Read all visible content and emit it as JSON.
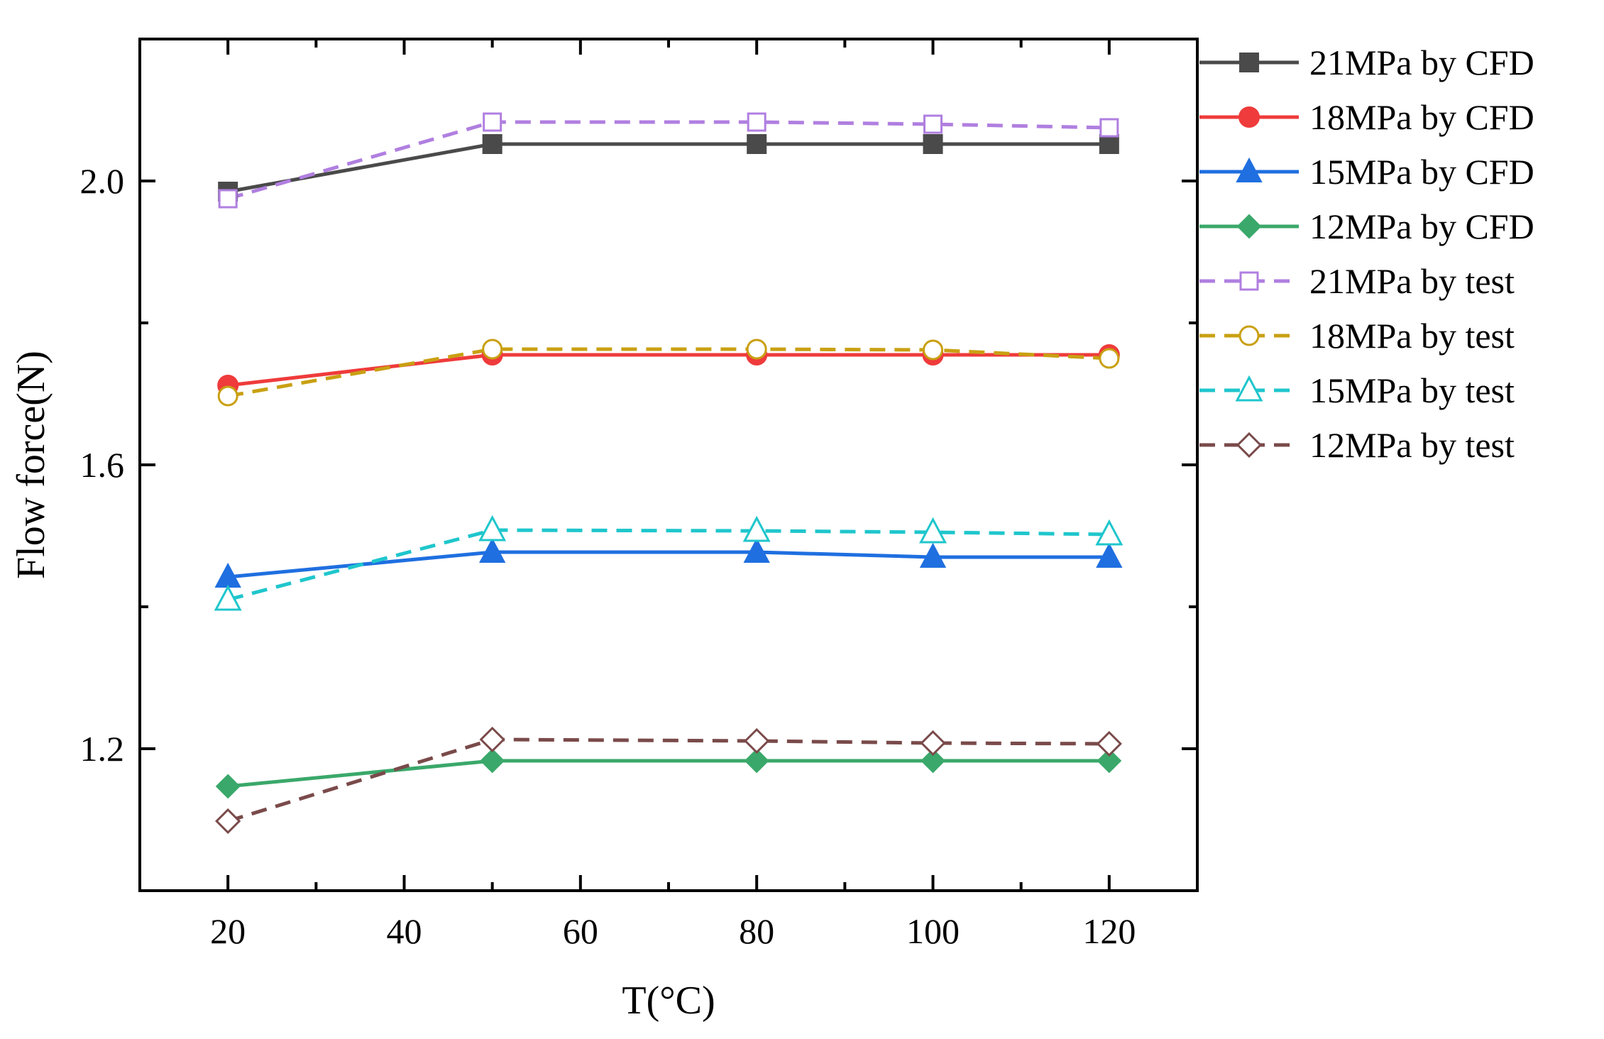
{
  "chart_data": {
    "type": "line",
    "title": "",
    "xlabel": "T(°C)",
    "ylabel": "Flow force(N)",
    "x": [
      20,
      50,
      80,
      100,
      120
    ],
    "xlim": [
      10,
      130
    ],
    "ylim": [
      1.0,
      2.2
    ],
    "xticks": [
      20,
      40,
      60,
      80,
      100,
      120
    ],
    "xtick_labels": [
      "20",
      "40",
      "60",
      "80",
      "100",
      "120"
    ],
    "yticks": [
      1.2,
      1.6,
      2.0
    ],
    "ytick_labels": [
      "1.2",
      "1.6",
      "2.0"
    ],
    "grid": false,
    "legend_position": "outside-right-top",
    "series": [
      {
        "name": "21MPa by CFD",
        "values": [
          1.985,
          2.052,
          2.052,
          2.052,
          2.052
        ],
        "color": "#4a4a4a",
        "dash": "solid",
        "marker": "square",
        "filled": true
      },
      {
        "name": "18MPa by CFD",
        "values": [
          1.712,
          1.755,
          1.755,
          1.755,
          1.755
        ],
        "color": "#ef3b3b",
        "dash": "solid",
        "marker": "circle",
        "filled": true
      },
      {
        "name": "15MPa by CFD",
        "values": [
          1.442,
          1.477,
          1.477,
          1.47,
          1.47
        ],
        "color": "#1f6fe0",
        "dash": "solid",
        "marker": "triangle",
        "filled": true
      },
      {
        "name": "12MPa by CFD",
        "values": [
          1.147,
          1.183,
          1.183,
          1.183,
          1.183
        ],
        "color": "#3aa86a",
        "dash": "solid",
        "marker": "diamond",
        "filled": true
      },
      {
        "name": "21MPa by test",
        "values": [
          1.975,
          2.083,
          2.083,
          2.08,
          2.075
        ],
        "color": "#b07fe0",
        "dash": "dashed",
        "marker": "square",
        "filled": false
      },
      {
        "name": "18MPa by test",
        "values": [
          1.697,
          1.763,
          1.763,
          1.762,
          1.75
        ],
        "color": "#c9a012",
        "dash": "dashed",
        "marker": "circle",
        "filled": false
      },
      {
        "name": "15MPa by test",
        "values": [
          1.41,
          1.508,
          1.507,
          1.505,
          1.502
        ],
        "color": "#1fc6cc",
        "dash": "dashed",
        "marker": "triangle",
        "filled": false
      },
      {
        "name": "12MPa by test",
        "values": [
          1.098,
          1.213,
          1.211,
          1.208,
          1.207
        ],
        "color": "#7a4a4a",
        "dash": "dashed",
        "marker": "diamond",
        "filled": false
      }
    ]
  }
}
